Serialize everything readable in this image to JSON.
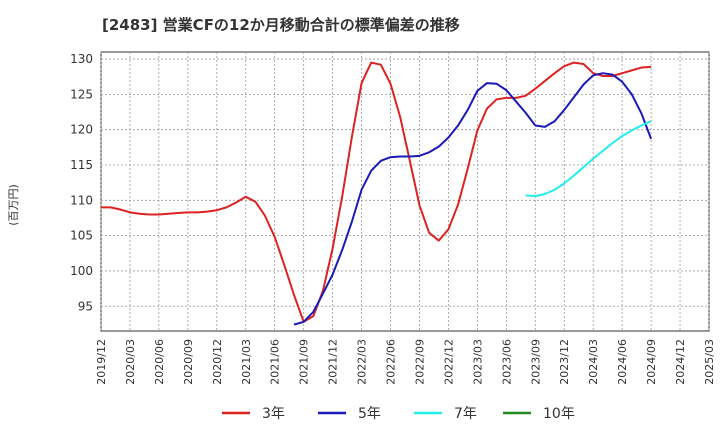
{
  "chart_data": {
    "type": "line",
    "title": "[2483]  営業CFの12か月移動合計の標準偏差の推移",
    "ylabel": "(百万円)",
    "xlabel": "",
    "ylim": [
      91.5,
      131
    ],
    "yticks": [
      95,
      100,
      105,
      110,
      115,
      120,
      125,
      130
    ],
    "xlim": [
      "2019-12",
      "2025-03"
    ],
    "xticks": [
      "2019/12",
      "2020/03",
      "2020/06",
      "2020/09",
      "2020/12",
      "2021/03",
      "2021/06",
      "2021/09",
      "2021/12",
      "2022/03",
      "2022/06",
      "2022/09",
      "2022/12",
      "2023/03",
      "2023/06",
      "2023/09",
      "2023/12",
      "2024/03",
      "2024/06",
      "2024/09",
      "2024/12",
      "2025/03"
    ],
    "grid": true,
    "legend_position": "bottom",
    "series": [
      {
        "name": "3年",
        "color": "#dd2222",
        "x": [
          "2019-12",
          "2020-01",
          "2020-02",
          "2020-03",
          "2020-04",
          "2020-05",
          "2020-06",
          "2020-07",
          "2020-08",
          "2020-09",
          "2020-10",
          "2020-11",
          "2020-12",
          "2021-01",
          "2021-02",
          "2021-03",
          "2021-04",
          "2021-05",
          "2021-06",
          "2021-07",
          "2021-08",
          "2021-09",
          "2021-10",
          "2021-11",
          "2021-12",
          "2022-01",
          "2022-02",
          "2022-03",
          "2022-04",
          "2022-05",
          "2022-06",
          "2022-07",
          "2022-08",
          "2022-09",
          "2022-10",
          "2022-11",
          "2022-12",
          "2023-01",
          "2023-02",
          "2023-03",
          "2023-04",
          "2023-05",
          "2023-06",
          "2023-07",
          "2023-08",
          "2023-09",
          "2023-10",
          "2023-11",
          "2023-12",
          "2024-01",
          "2024-02",
          "2024-03",
          "2024-04",
          "2024-05",
          "2024-06",
          "2024-07",
          "2024-08",
          "2024-09"
        ],
        "values": [
          109.0,
          109.0,
          108.7,
          108.3,
          108.1,
          108.0,
          108.0,
          108.1,
          108.2,
          108.3,
          108.3,
          108.4,
          108.6,
          109.0,
          109.7,
          110.5,
          109.8,
          107.8,
          104.8,
          100.8,
          96.6,
          92.8,
          93.6,
          97.2,
          103.2,
          110.6,
          119.0,
          126.6,
          129.5,
          129.2,
          126.5,
          121.8,
          115.6,
          109.3,
          105.4,
          104.3,
          105.9,
          109.4,
          114.5,
          119.9,
          123.0,
          124.3,
          124.5,
          124.5,
          124.8,
          125.8,
          126.9,
          128.0,
          129.0,
          129.5,
          129.3,
          128.0,
          127.6,
          127.6,
          128.0,
          128.4,
          128.8,
          128.9
        ]
      },
      {
        "name": "5年",
        "color": "#1a1ab8",
        "x": [
          "2021-08",
          "2021-09",
          "2021-10",
          "2021-11",
          "2021-12",
          "2022-01",
          "2022-02",
          "2022-03",
          "2022-04",
          "2022-05",
          "2022-06",
          "2022-07",
          "2022-08",
          "2022-09",
          "2022-10",
          "2022-11",
          "2022-12",
          "2023-01",
          "2023-02",
          "2023-03",
          "2023-04",
          "2023-05",
          "2023-06",
          "2023-07",
          "2023-08",
          "2023-09",
          "2023-10",
          "2023-11",
          "2023-12",
          "2024-01",
          "2024-02",
          "2024-03",
          "2024-04",
          "2024-05",
          "2024-06",
          "2024-07",
          "2024-08",
          "2024-09"
        ],
        "values": [
          92.4,
          92.8,
          94.2,
          96.8,
          99.5,
          103.0,
          107.0,
          111.5,
          114.2,
          115.6,
          116.1,
          116.2,
          116.2,
          116.3,
          116.8,
          117.6,
          118.9,
          120.6,
          122.8,
          125.5,
          126.6,
          126.5,
          125.6,
          124.0,
          122.4,
          120.6,
          120.4,
          121.2,
          122.8,
          124.6,
          126.4,
          127.7,
          128.0,
          127.8,
          126.8,
          125.0,
          122.3,
          118.7
        ]
      },
      {
        "name": "7年",
        "color": "#22eeee",
        "x": [
          "2023-08",
          "2023-09",
          "2023-10",
          "2023-11",
          "2023-12",
          "2024-01",
          "2024-02",
          "2024-03",
          "2024-04",
          "2024-05",
          "2024-06",
          "2024-07",
          "2024-08",
          "2024-09"
        ],
        "values": [
          110.7,
          110.6,
          110.9,
          111.5,
          112.4,
          113.5,
          114.7,
          115.9,
          117.0,
          118.1,
          119.1,
          119.9,
          120.6,
          121.2
        ]
      },
      {
        "name": "10年",
        "color": "#228822",
        "x": [],
        "values": []
      }
    ]
  }
}
